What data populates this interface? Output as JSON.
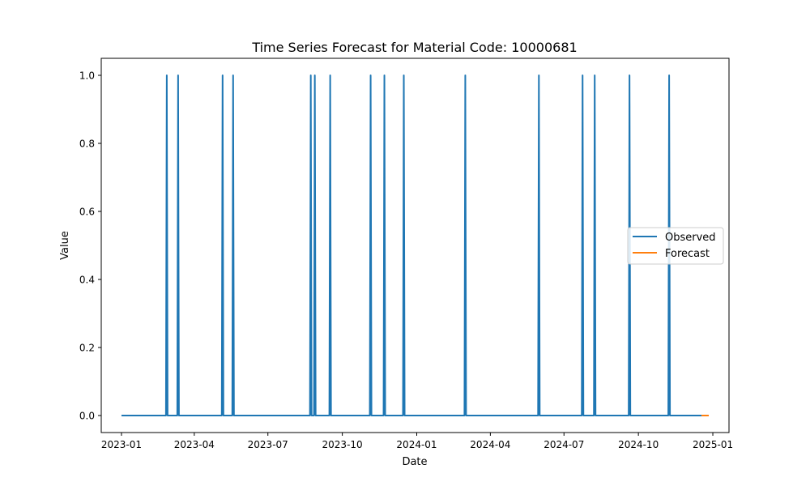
{
  "chart_data": {
    "type": "line",
    "title": "Time Series Forecast for Material Code: 10000681",
    "xlabel": "Date",
    "ylabel": "Value",
    "xlim": [
      "2022-12-07",
      "2025-01-21"
    ],
    "ylim": [
      -0.05,
      1.05
    ],
    "x_ticks": [
      "2023-01",
      "2023-04",
      "2023-07",
      "2023-10",
      "2024-01",
      "2024-04",
      "2024-07",
      "2024-10",
      "2025-01"
    ],
    "y_ticks": [
      0.0,
      0.2,
      0.4,
      0.6,
      0.8,
      1.0
    ],
    "y_tick_labels": [
      "0.0",
      "0.2",
      "0.4",
      "0.6",
      "0.8",
      "1.0"
    ],
    "grid": false,
    "legend_position": "center-right",
    "series": [
      {
        "name": "Observed",
        "color": "#1f77b4",
        "x": [
          "2023-01-01",
          "2023-02-25",
          "2023-02-26",
          "2023-02-27",
          "2023-03-11",
          "2023-03-12",
          "2023-03-13",
          "2023-05-05",
          "2023-05-06",
          "2023-05-07",
          "2023-05-18",
          "2023-05-19",
          "2023-05-20",
          "2023-08-22",
          "2023-08-23",
          "2023-08-24",
          "2023-08-27",
          "2023-08-28",
          "2023-08-29",
          "2023-09-15",
          "2023-09-16",
          "2023-09-17",
          "2023-11-04",
          "2023-11-05",
          "2023-11-06",
          "2023-11-21",
          "2023-11-22",
          "2023-11-23",
          "2023-12-15",
          "2023-12-16",
          "2023-12-17",
          "2024-02-29",
          "2024-03-01",
          "2024-03-02",
          "2024-05-30",
          "2024-05-31",
          "2024-06-01",
          "2024-07-23",
          "2024-07-24",
          "2024-07-25",
          "2024-08-07",
          "2024-08-08",
          "2024-08-09",
          "2024-09-19",
          "2024-09-20",
          "2024-09-21",
          "2024-11-07",
          "2024-11-08",
          "2024-11-09",
          "2024-12-18"
        ],
        "values": [
          0,
          0,
          1,
          0,
          0,
          1,
          0,
          0,
          1,
          0,
          0,
          1,
          0,
          0,
          1,
          0,
          0,
          1,
          0,
          0,
          1,
          0,
          0,
          1,
          0,
          0,
          1,
          0,
          0,
          1,
          0,
          0,
          1,
          0,
          0,
          1,
          0,
          0,
          1,
          0,
          0,
          1,
          0,
          0,
          1,
          0,
          0,
          1,
          0,
          0
        ]
      },
      {
        "name": "Forecast",
        "color": "#ff7f0e",
        "x": [
          "2024-12-18",
          "2024-12-27"
        ],
        "values": [
          0,
          0
        ]
      }
    ]
  }
}
